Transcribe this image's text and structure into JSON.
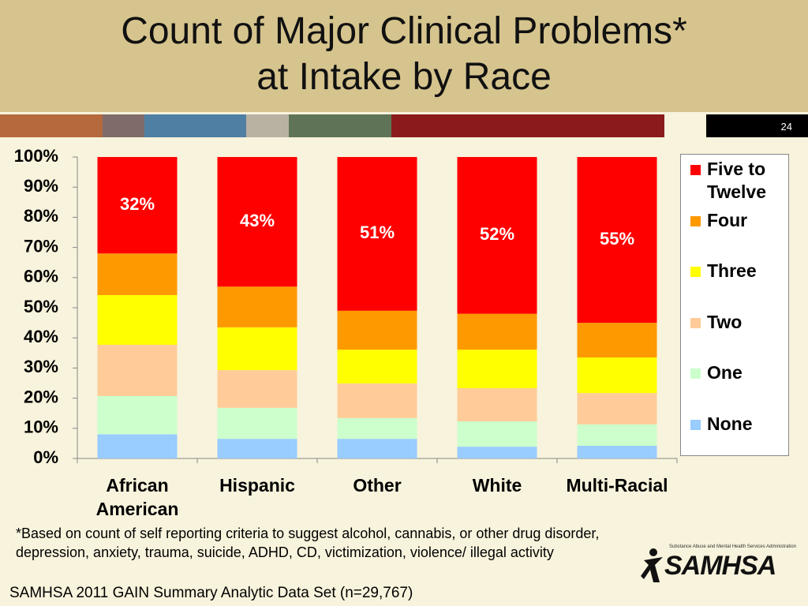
{
  "header": {
    "title": [
      "Count of Major Clinical Problems*",
      "at Intake by Race"
    ],
    "slide_number": "24"
  },
  "chart_data": {
    "type": "stacked_bar",
    "categories": [
      "African American",
      "Hispanic",
      "Other",
      "White",
      "Multi-Racial"
    ],
    "series": [
      {
        "name": "None",
        "color": "#99ccff",
        "values": [
          8,
          6.5,
          6.5,
          3.9,
          4.2
        ]
      },
      {
        "name": "One",
        "color": "#ccffcc",
        "values": [
          12.7,
          10.3,
          6.9,
          8.4,
          7.1
        ]
      },
      {
        "name": "Two",
        "color": "#ffcc99",
        "values": [
          17,
          12.5,
          11.5,
          11,
          10.4
        ]
      },
      {
        "name": "Three",
        "color": "#ffff00",
        "values": [
          16.5,
          14.2,
          11.2,
          12.8,
          11.8
        ]
      },
      {
        "name": "Four",
        "color": "#ff9900",
        "values": [
          13.8,
          13.5,
          12.9,
          11.9,
          11.5
        ]
      },
      {
        "name": "Five to Twelve",
        "color": "#ff0000",
        "values": [
          32,
          43,
          51,
          52,
          55
        ],
        "value_labels": [
          "32%",
          "43%",
          "51%",
          "52%",
          "55%"
        ]
      }
    ],
    "ylim": [
      0,
      100
    ],
    "yticks": [
      {
        "value": 0,
        "label": "0%"
      },
      {
        "value": 10,
        "label": "10%"
      },
      {
        "value": 20,
        "label": "20%"
      },
      {
        "value": 30,
        "label": "30%"
      },
      {
        "value": 40,
        "label": "40%"
      },
      {
        "value": 50,
        "label": "50%"
      },
      {
        "value": 60,
        "label": "60%"
      },
      {
        "value": 70,
        "label": "70%"
      },
      {
        "value": 80,
        "label": "80%"
      },
      {
        "value": 90,
        "label": "90%"
      },
      {
        "value": 100,
        "label": "100%"
      }
    ],
    "legend": "right"
  },
  "footnote": "*Based on count of self reporting criteria to suggest alcohol, cannabis, or other drug disorder, depression, anxiety, trauma, suicide, ADHD, CD, victimization, violence/ illegal activity",
  "source": "SAMHSA 2011 GAIN Summary Analytic Data Set (n=29,767)",
  "logo": {
    "name": "SAMHSA",
    "subtitle": "Substance Abuse and Mental Health Services Administration"
  }
}
